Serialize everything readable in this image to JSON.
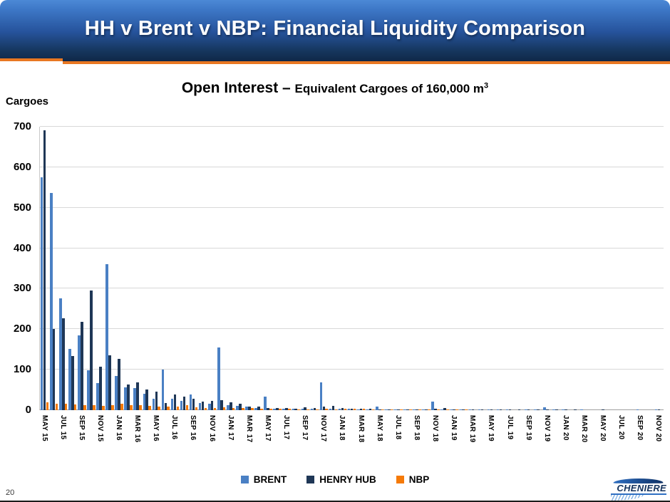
{
  "header": {
    "title": "HH v Brent v NBP: Financial Liquidity Comparison"
  },
  "chart_title": {
    "main": "Open Interest – ",
    "sub": "Equivalent Cargoes of 160,000 m",
    "superscript": "3"
  },
  "footer": {
    "page_number": "20",
    "logo_text": "CHENIERE"
  },
  "colors": {
    "header_gradient_top": "#4c89d6",
    "header_gradient_bottom": "#0f2848",
    "accent_orange": "#E87722",
    "brent": "#4A80C4",
    "henry_hub": "#1F3756",
    "nbp": "#F57A08",
    "gridline": "#d8d8d8"
  },
  "chart_data": {
    "type": "bar",
    "title": "Open Interest – Equivalent Cargoes of 160,000 m³",
    "xlabel": "",
    "ylabel": "Cargoes",
    "ylim": [
      0,
      700
    ],
    "yticks": [
      0,
      100,
      200,
      300,
      400,
      500,
      600,
      700
    ],
    "grid": true,
    "legend_position": "bottom",
    "x_months": [
      "MAY 15",
      "JUN 15",
      "JUL 15",
      "AUG 15",
      "SEP 15",
      "OCT 15",
      "NOV 15",
      "DEC 15",
      "JAN 16",
      "FEB 16",
      "MAR 16",
      "APR 16",
      "MAY 16",
      "JUN 16",
      "JUL 16",
      "AUG 16",
      "SEP 16",
      "OCT 16",
      "NOV 16",
      "DEC 16",
      "JAN 17",
      "FEB 17",
      "MAR 17",
      "APR 17",
      "MAY 17",
      "JUN 17",
      "JUL 17",
      "AUG 17",
      "SEP 17",
      "OCT 17",
      "NOV 17",
      "DEC 17",
      "JAN 18",
      "FEB 18",
      "MAR 18",
      "APR 18",
      "MAY 18",
      "JUN 18",
      "JUL 18",
      "AUG 18",
      "SEP 18",
      "OCT 18",
      "NOV 18",
      "DEC 18",
      "JAN 19",
      "FEB 19",
      "MAR 19",
      "APR 19",
      "MAY 19",
      "JUN 19",
      "JUL 19",
      "AUG 19",
      "SEP 19",
      "OCT 19",
      "NOV 19",
      "DEC 19",
      "JAN 20",
      "FEB 20",
      "MAR 20",
      "APR 20",
      "MAY 20",
      "JUN 20",
      "JUL 20",
      "AUG 20",
      "SEP 20",
      "OCT 20",
      "NOV 20"
    ],
    "xtick_labels": [
      "MAY 15",
      "JUL 15",
      "SEP 15",
      "NOV 15",
      "JAN 16",
      "MAR 16",
      "MAY 16",
      "JUL 16",
      "SEP 16",
      "NOV 16",
      "JAN 17",
      "MAR 17",
      "MAY 17",
      "JUL 17",
      "SEP 17",
      "NOV 17",
      "JAN 18",
      "MAR 18",
      "MAY 18",
      "JUL 18",
      "SEP 18",
      "NOV 18",
      "JAN 19",
      "MAR 19",
      "MAY 19",
      "JUL 19",
      "SEP 19",
      "NOV 19",
      "JAN 20",
      "MAR 20",
      "MAY 20",
      "JUL 20",
      "SEP 20",
      "NOV 20"
    ],
    "series": [
      {
        "name": "BRENT",
        "color": "#4A80C4",
        "values": [
          575,
          537,
          277,
          151,
          184,
          98,
          66,
          361,
          84,
          57,
          54,
          40,
          28,
          100,
          29,
          23,
          39,
          17,
          16,
          154,
          13,
          10,
          9,
          6,
          34,
          4,
          3,
          3,
          3,
          3,
          69,
          3,
          4,
          3,
          2,
          2,
          8,
          1,
          1,
          1,
          1,
          2,
          22,
          2,
          2,
          1,
          1,
          2,
          1,
          1,
          1,
          0,
          1,
          1,
          7,
          1,
          1,
          0,
          1,
          0,
          0,
          0,
          0,
          0,
          1,
          0,
          1
        ]
      },
      {
        "name": "HENRY HUB",
        "color": "#1F3756",
        "values": [
          692,
          200,
          227,
          133,
          218,
          296,
          107,
          135,
          126,
          63,
          69,
          51,
          46,
          18,
          39,
          33,
          28,
          22,
          23,
          25,
          19,
          15,
          8,
          9,
          5,
          5,
          6,
          4,
          7,
          5,
          9,
          10,
          6,
          4,
          3,
          3,
          2,
          2,
          2,
          1,
          2,
          1,
          4,
          5,
          2,
          1,
          2,
          1,
          1,
          1,
          1,
          1,
          1,
          1,
          2,
          1,
          1,
          1,
          0,
          0,
          1,
          0,
          0,
          0,
          0,
          0,
          1
        ]
      },
      {
        "name": "NBP",
        "color": "#F57A08",
        "values": [
          20,
          16,
          15,
          14,
          13,
          12,
          10,
          13,
          16,
          12,
          12,
          10,
          9,
          8,
          8,
          12,
          7,
          6,
          6,
          7,
          5,
          5,
          6,
          4,
          3,
          3,
          3,
          2,
          2,
          2,
          3,
          2,
          3,
          3,
          3,
          2,
          1,
          1,
          1,
          1,
          1,
          1,
          1,
          1,
          1,
          1,
          0,
          0,
          0,
          0,
          0,
          0,
          0,
          0,
          0,
          0,
          0,
          0,
          0,
          0,
          0,
          0,
          0,
          0,
          0,
          0,
          0
        ]
      }
    ]
  }
}
